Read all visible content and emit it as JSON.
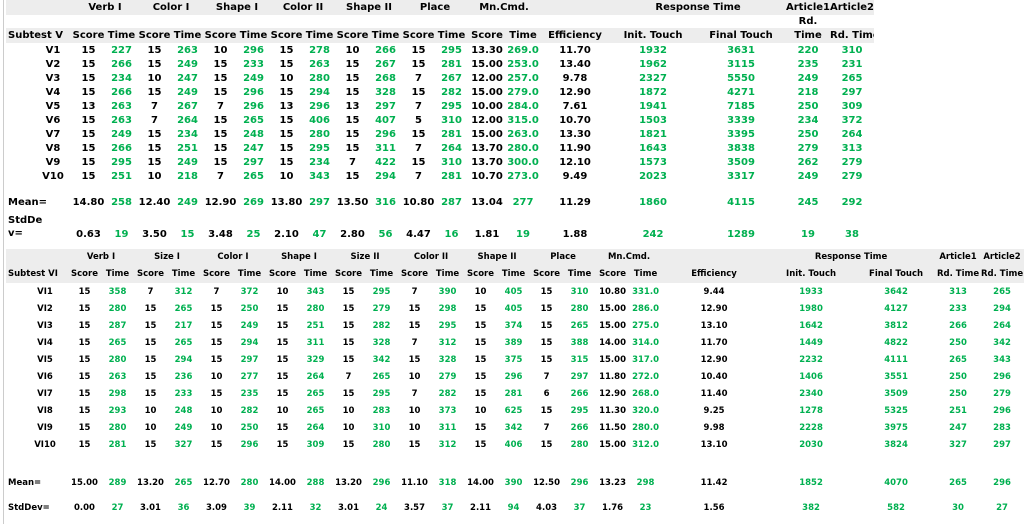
{
  "colors": {
    "value_black": "#000000",
    "value_green": "#00b050",
    "header_band_bg": "#ededed",
    "background": "#ffffff"
  },
  "tables": [
    {
      "id": "subtest-v",
      "corner_label": "Subtest V",
      "score_time_pairs": 7,
      "groups": [
        {
          "label": "Verb I",
          "span": 2
        },
        {
          "label": "Color I",
          "span": 2
        },
        {
          "label": "Shape I",
          "span": 2
        },
        {
          "label": "Color II",
          "span": 2
        },
        {
          "label": "Shape II",
          "span": 2
        },
        {
          "label": "Place",
          "span": 2
        },
        {
          "label": "Mn.Cmd.",
          "span": 2
        },
        {
          "label": "",
          "span": 1
        },
        {
          "label": "Response Time",
          "span": 2
        },
        {
          "label": "Article1",
          "span": 1
        },
        {
          "label": "Article2",
          "span": 1
        }
      ],
      "mid_labels": [
        {
          "col": 17,
          "label": "Rd."
        }
      ],
      "sub_headers": [
        "Score",
        "Time",
        "Score",
        "Time",
        "Score",
        "Time",
        "Score",
        "Time",
        "Score",
        "Time",
        "Score",
        "Time",
        "Score",
        "Time",
        "Efficiency",
        "Init. Touch",
        "Final Touch",
        "Time",
        "Rd. Time"
      ],
      "rows": [
        {
          "label": "V1",
          "values": [
            "15",
            "227",
            "15",
            "263",
            "10",
            "296",
            "15",
            "278",
            "10",
            "266",
            "15",
            "295",
            "13.30",
            "269.0",
            "11.70",
            "1932",
            "3631",
            "220",
            "310"
          ]
        },
        {
          "label": "V2",
          "values": [
            "15",
            "266",
            "15",
            "249",
            "15",
            "233",
            "15",
            "263",
            "15",
            "267",
            "15",
            "281",
            "15.00",
            "253.0",
            "13.40",
            "1962",
            "3115",
            "235",
            "231"
          ]
        },
        {
          "label": "V3",
          "values": [
            "15",
            "234",
            "10",
            "247",
            "15",
            "249",
            "10",
            "280",
            "15",
            "268",
            "7",
            "267",
            "12.00",
            "257.0",
            "9.78",
            "2327",
            "5550",
            "249",
            "265"
          ]
        },
        {
          "label": "V4",
          "values": [
            "15",
            "266",
            "15",
            "249",
            "15",
            "296",
            "15",
            "294",
            "15",
            "328",
            "15",
            "282",
            "15.00",
            "279.0",
            "12.90",
            "1872",
            "4271",
            "218",
            "297"
          ]
        },
        {
          "label": "V5",
          "values": [
            "13",
            "263",
            "7",
            "267",
            "7",
            "296",
            "13",
            "296",
            "13",
            "297",
            "7",
            "295",
            "10.00",
            "284.0",
            "7.61",
            "1941",
            "7185",
            "250",
            "309"
          ]
        },
        {
          "label": "V6",
          "values": [
            "15",
            "263",
            "7",
            "264",
            "15",
            "265",
            "15",
            "406",
            "15",
            "407",
            "5",
            "310",
            "12.00",
            "315.0",
            "10.70",
            "1503",
            "3339",
            "234",
            "372"
          ]
        },
        {
          "label": "V7",
          "values": [
            "15",
            "249",
            "15",
            "234",
            "15",
            "248",
            "15",
            "280",
            "15",
            "296",
            "15",
            "281",
            "15.00",
            "263.0",
            "13.30",
            "1821",
            "3395",
            "250",
            "264"
          ]
        },
        {
          "label": "V8",
          "values": [
            "15",
            "266",
            "15",
            "251",
            "15",
            "247",
            "15",
            "295",
            "15",
            "311",
            "7",
            "264",
            "13.70",
            "280.0",
            "11.90",
            "1643",
            "3838",
            "279",
            "313"
          ]
        },
        {
          "label": "V9",
          "values": [
            "15",
            "295",
            "15",
            "249",
            "15",
            "297",
            "15",
            "234",
            "7",
            "422",
            "15",
            "310",
            "13.70",
            "300.0",
            "12.10",
            "1573",
            "3509",
            "262",
            "279"
          ]
        },
        {
          "label": "V10",
          "values": [
            "15",
            "251",
            "10",
            "218",
            "7",
            "265",
            "10",
            "343",
            "15",
            "294",
            "7",
            "281",
            "10.70",
            "273.0",
            "9.49",
            "2023",
            "3317",
            "249",
            "279"
          ]
        }
      ],
      "summary_rows": [
        {
          "label": "Mean=",
          "values": [
            "14.80",
            "258",
            "12.40",
            "249",
            "12.90",
            "269",
            "13.80",
            "297",
            "13.50",
            "316",
            "10.80",
            "287",
            "13.04",
            "277",
            "11.29",
            "1860",
            "4115",
            "245",
            "292"
          ]
        },
        {
          "label": "StdDe\nv=",
          "values": [
            "0.63",
            "19",
            "3.50",
            "15",
            "3.48",
            "25",
            "2.10",
            "47",
            "2.80",
            "56",
            "4.47",
            "16",
            "1.81",
            "19",
            "1.88",
            "242",
            "1289",
            "19",
            "38"
          ]
        }
      ]
    },
    {
      "id": "subtest-vi",
      "corner_label": "Subtest VI",
      "score_time_pairs": 9,
      "groups": [
        {
          "label": "Verb I",
          "span": 2
        },
        {
          "label": "Size I",
          "span": 2
        },
        {
          "label": "Color I",
          "span": 2
        },
        {
          "label": "Shape I",
          "span": 2
        },
        {
          "label": "Size II",
          "span": 2
        },
        {
          "label": "Color II",
          "span": 2
        },
        {
          "label": "Shape II",
          "span": 2
        },
        {
          "label": "Place",
          "span": 2
        },
        {
          "label": "Mn.Cmd.",
          "span": 2
        },
        {
          "label": "",
          "span": 1
        },
        {
          "label": "Response Time",
          "span": 2
        },
        {
          "label": "Article1",
          "span": 1
        },
        {
          "label": "Article2",
          "span": 1
        }
      ],
      "sub_headers": [
        "Score",
        "Time",
        "Score",
        "Time",
        "Score",
        "Time",
        "Score",
        "Time",
        "Score",
        "Time",
        "Score",
        "Time",
        "Score",
        "Time",
        "Score",
        "Time",
        "Score",
        "Time",
        "Efficiency",
        "Init. Touch",
        "Final Touch",
        "Rd. Time",
        "Rd. Time"
      ],
      "rows": [
        {
          "label": "VI1",
          "values": [
            "15",
            "358",
            "7",
            "312",
            "7",
            "372",
            "10",
            "343",
            "15",
            "295",
            "7",
            "390",
            "10",
            "405",
            "15",
            "310",
            "10.80",
            "331.0",
            "9.44",
            "1933",
            "3642",
            "313",
            "265"
          ]
        },
        {
          "label": "VI2",
          "values": [
            "15",
            "280",
            "15",
            "265",
            "15",
            "250",
            "15",
            "280",
            "15",
            "279",
            "15",
            "298",
            "15",
            "405",
            "15",
            "280",
            "15.00",
            "286.0",
            "12.90",
            "1980",
            "4127",
            "233",
            "294"
          ]
        },
        {
          "label": "VI3",
          "values": [
            "15",
            "287",
            "15",
            "217",
            "15",
            "249",
            "15",
            "251",
            "15",
            "282",
            "15",
            "295",
            "15",
            "374",
            "15",
            "265",
            "15.00",
            "275.0",
            "13.10",
            "1642",
            "3812",
            "266",
            "264"
          ]
        },
        {
          "label": "VI4",
          "values": [
            "15",
            "265",
            "15",
            "265",
            "15",
            "294",
            "15",
            "311",
            "15",
            "328",
            "7",
            "312",
            "15",
            "389",
            "15",
            "388",
            "14.00",
            "314.0",
            "11.70",
            "1449",
            "4822",
            "250",
            "342"
          ]
        },
        {
          "label": "VI5",
          "values": [
            "15",
            "280",
            "15",
            "294",
            "15",
            "297",
            "15",
            "329",
            "15",
            "342",
            "15",
            "328",
            "15",
            "375",
            "15",
            "315",
            "15.00",
            "317.0",
            "12.90",
            "2232",
            "4111",
            "265",
            "343"
          ]
        },
        {
          "label": "VI6",
          "values": [
            "15",
            "263",
            "15",
            "236",
            "10",
            "277",
            "15",
            "264",
            "7",
            "265",
            "10",
            "279",
            "15",
            "296",
            "7",
            "297",
            "11.80",
            "272.0",
            "10.40",
            "1406",
            "3551",
            "250",
            "296"
          ]
        },
        {
          "label": "VI7",
          "values": [
            "15",
            "298",
            "15",
            "233",
            "15",
            "235",
            "15",
            "265",
            "15",
            "295",
            "7",
            "282",
            "15",
            "281",
            "6",
            "266",
            "12.90",
            "268.0",
            "11.40",
            "2340",
            "3509",
            "250",
            "279"
          ]
        },
        {
          "label": "VI8",
          "values": [
            "15",
            "293",
            "10",
            "248",
            "10",
            "282",
            "10",
            "265",
            "10",
            "283",
            "10",
            "373",
            "10",
            "625",
            "15",
            "295",
            "11.30",
            "320.0",
            "9.25",
            "1278",
            "5325",
            "251",
            "296"
          ]
        },
        {
          "label": "VI9",
          "values": [
            "15",
            "280",
            "10",
            "249",
            "10",
            "250",
            "15",
            "264",
            "10",
            "310",
            "10",
            "311",
            "15",
            "342",
            "7",
            "266",
            "11.50",
            "280.0",
            "9.98",
            "2228",
            "3975",
            "247",
            "283"
          ]
        },
        {
          "label": "VI10",
          "values": [
            "15",
            "281",
            "15",
            "327",
            "15",
            "296",
            "15",
            "309",
            "15",
            "280",
            "15",
            "312",
            "15",
            "406",
            "15",
            "280",
            "15.00",
            "312.0",
            "13.10",
            "2030",
            "3824",
            "327",
            "297"
          ]
        }
      ],
      "summary_rows": [
        {
          "label": "Mean=",
          "values": [
            "15.00",
            "289",
            "13.20",
            "265",
            "12.70",
            "280",
            "14.00",
            "288",
            "13.20",
            "296",
            "11.10",
            "318",
            "14.00",
            "390",
            "12.50",
            "296",
            "13.23",
            "298",
            "11.42",
            "1852",
            "4070",
            "265",
            "296"
          ]
        },
        {
          "label": "StdDev=",
          "values": [
            "0.00",
            "27",
            "3.01",
            "36",
            "3.09",
            "39",
            "2.11",
            "32",
            "3.01",
            "24",
            "3.57",
            "37",
            "2.11",
            "94",
            "4.03",
            "37",
            "1.76",
            "23",
            "1.56",
            "382",
            "582",
            "30",
            "27"
          ]
        }
      ]
    }
  ]
}
